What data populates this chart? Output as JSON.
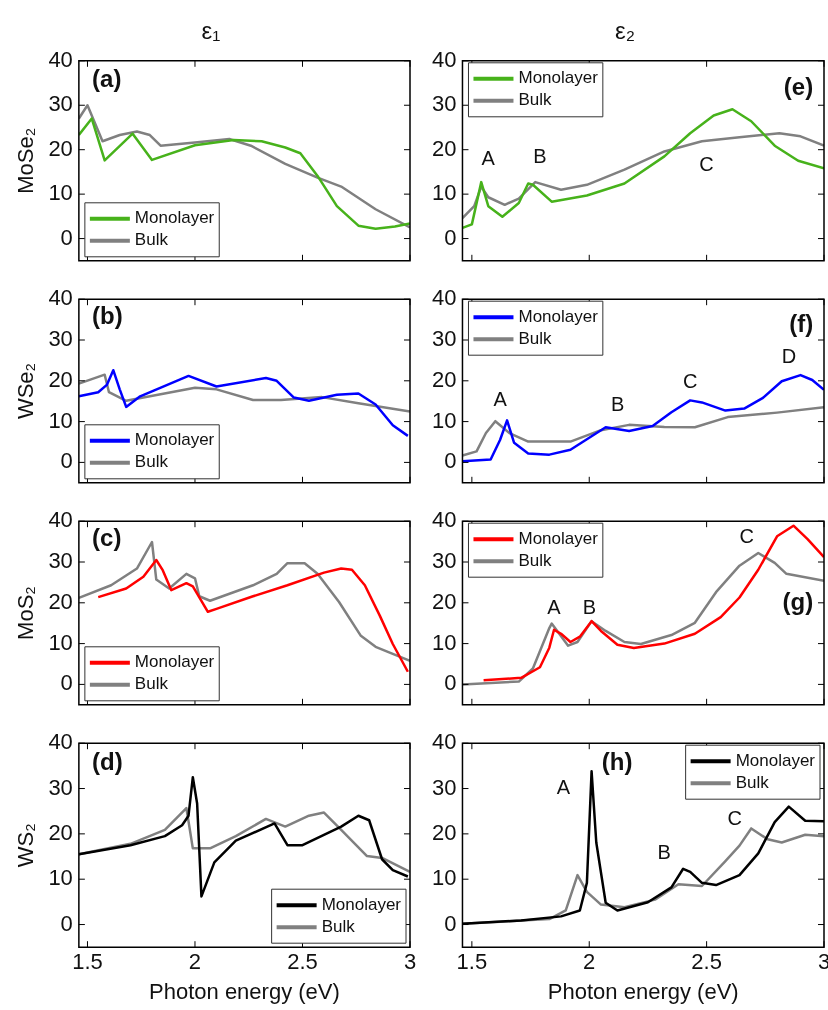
{
  "chart_data": [
    {
      "type": "line",
      "title": "ε₁",
      "ylabel": "MoSe₂",
      "xlim": [
        1.46,
        3
      ],
      "xticks": [
        1.5,
        2,
        2.5,
        3
      ],
      "ylim": [
        -5,
        40
      ],
      "yticks": [
        0,
        10,
        20,
        30,
        40
      ],
      "tick_labels": "y",
      "legend": "bottom left",
      "annotations": [
        "(a)"
      ],
      "series": [
        {
          "name": "Monolayer",
          "color": "#47b21b",
          "x": [
            1.46,
            1.52,
            1.58,
            1.71,
            1.8,
            2.0,
            2.18,
            2.31,
            2.42,
            2.49,
            2.57,
            2.66,
            2.76,
            2.84,
            2.93,
            3.0
          ],
          "values": [
            23.3,
            27,
            17.6,
            23.6,
            17.7,
            21,
            22.2,
            21.9,
            20.5,
            19.2,
            14.1,
            7.3,
            2.9,
            2.2,
            2.7,
            3.4
          ]
        },
        {
          "name": "Bulk",
          "color": "#808080",
          "x": [
            1.46,
            1.5,
            1.57,
            1.65,
            1.73,
            1.79,
            1.84,
            2.0,
            2.16,
            2.26,
            2.42,
            2.57,
            2.68,
            2.84,
            3.0
          ],
          "values": [
            27,
            30,
            21.9,
            23.3,
            24.1,
            23.3,
            20.9,
            21.6,
            22.4,
            20.9,
            16.8,
            13.7,
            11.7,
            6.6,
            2.5
          ]
        }
      ]
    },
    {
      "type": "line",
      "ylabel": "WSe₂",
      "xlim": [
        1.46,
        3
      ],
      "xticks": [
        1.5,
        2,
        2.5,
        3
      ],
      "ylim": [
        -5,
        40
      ],
      "yticks": [
        0,
        10,
        20,
        30,
        40
      ],
      "tick_labels": "y",
      "legend": "bottom left",
      "annotations": [
        "(b)"
      ],
      "series": [
        {
          "name": "Monolayer",
          "color": "#0000ff",
          "x": [
            1.46,
            1.55,
            1.59,
            1.62,
            1.65,
            1.68,
            1.745,
            1.97,
            2.1,
            2.33,
            2.38,
            2.46,
            2.53,
            2.66,
            2.76,
            2.84,
            2.92,
            2.99
          ],
          "values": [
            16.2,
            17.2,
            19,
            22.6,
            17.9,
            13.6,
            16.2,
            21.2,
            18.6,
            20.7,
            20,
            15.9,
            15.1,
            16.6,
            16.9,
            14.2,
            9.1,
            6.5
          ]
        },
        {
          "name": "Bulk",
          "color": "#808080",
          "x": [
            1.46,
            1.58,
            1.6,
            1.68,
            2.0,
            2.1,
            2.27,
            2.4,
            2.59,
            2.76,
            3.0
          ],
          "values": [
            19.3,
            21.5,
            17.2,
            15.1,
            18.3,
            17.9,
            15.3,
            15.3,
            16,
            14.5,
            12.5
          ]
        }
      ]
    },
    {
      "type": "line",
      "ylabel": "MoS₂",
      "xlim": [
        1.46,
        3
      ],
      "xticks": [
        1.5,
        2,
        2.5,
        3
      ],
      "ylim": [
        -5,
        40
      ],
      "yticks": [
        0,
        10,
        20,
        30,
        40
      ],
      "tick_labels": "y",
      "legend": "bottom left",
      "annotations": [
        "(c)"
      ],
      "series": [
        {
          "name": "Monolayer",
          "color": "#ff0000",
          "x": [
            1.55,
            1.68,
            1.76,
            1.82,
            1.85,
            1.89,
            1.96,
            1.99,
            2.06,
            2.1,
            2.27,
            2.43,
            2.6,
            2.68,
            2.73,
            2.79,
            2.86,
            2.92,
            2.99
          ],
          "values": [
            21.4,
            23.5,
            26.4,
            30.5,
            28,
            23.1,
            24.8,
            24,
            17.8,
            18.5,
            21.6,
            24.3,
            27.4,
            28.4,
            28.1,
            24.3,
            16.8,
            9.9,
            3.1
          ]
        },
        {
          "name": "Bulk",
          "color": "#808080",
          "x": [
            1.46,
            1.61,
            1.73,
            1.8,
            1.82,
            1.88,
            1.96,
            2.0,
            2.02,
            2.07,
            2.27,
            2.38,
            2.43,
            2.51,
            2.57,
            2.67,
            2.77,
            2.84,
            2.92,
            3.0
          ],
          "values": [
            21.2,
            24.3,
            28.4,
            34.9,
            25.7,
            23.5,
            27.1,
            26,
            21.6,
            20.5,
            24.3,
            27.1,
            29.7,
            29.7,
            27.1,
            20.2,
            12,
            9.2,
            7.5,
            5.8
          ]
        }
      ]
    },
    {
      "type": "line",
      "ylabel": "WS₂",
      "xlabel": "Photon energy (eV)",
      "xlim": [
        1.46,
        3
      ],
      "xticks": [
        1.5,
        2,
        2.5,
        3
      ],
      "ylim": [
        -5,
        40
      ],
      "yticks": [
        0,
        10,
        20,
        30,
        40
      ],
      "legend": "bottom right",
      "annotations": [
        "(d)"
      ],
      "series": [
        {
          "name": "Monolayer",
          "color": "#000000",
          "x": [
            1.46,
            1.7,
            1.86,
            1.94,
            1.97,
            1.99,
            2.01,
            2.03,
            2.09,
            2.19,
            2.37,
            2.43,
            2.5,
            2.68,
            2.76,
            2.81,
            2.87,
            2.92,
            2.99
          ],
          "values": [
            15.5,
            17.5,
            19.5,
            21.9,
            24,
            32.5,
            26.7,
            6.2,
            13.7,
            18.5,
            22.3,
            17.5,
            17.5,
            21.6,
            24,
            23,
            14.4,
            12,
            10.6
          ]
        },
        {
          "name": "Bulk",
          "color": "#808080",
          "x": [
            1.46,
            1.7,
            1.86,
            1.96,
            1.99,
            2.07,
            2.19,
            2.33,
            2.42,
            2.53,
            2.6,
            2.68,
            2.8,
            2.87,
            3.0
          ],
          "values": [
            15.5,
            17.8,
            20.9,
            25.7,
            16.8,
            16.8,
            19.5,
            23.3,
            21.6,
            24,
            24.7,
            20.9,
            15.1,
            14.7,
            11.6
          ]
        }
      ]
    },
    {
      "type": "line",
      "title": "ε₂",
      "xlim": [
        1.46,
        3
      ],
      "xticks": [
        1.5,
        2,
        2.5,
        3
      ],
      "ylim": [
        -5,
        40
      ],
      "yticks": [
        0,
        10,
        20,
        30,
        40
      ],
      "tick_labels": "y",
      "legend": "top left",
      "annotations": [
        "(e)",
        "A",
        "B",
        "C"
      ],
      "series": [
        {
          "name": "Monolayer",
          "color": "#47b21b",
          "x": [
            1.46,
            1.5,
            1.54,
            1.57,
            1.63,
            1.7,
            1.74,
            1.76,
            1.84,
            1.99,
            2.15,
            2.32,
            2.43,
            2.53,
            2.61,
            2.69,
            2.79,
            2.89,
            3.0
          ],
          "values": [
            2.4,
            3.2,
            12.7,
            7.3,
            4.9,
            8,
            12.4,
            12.1,
            8.3,
            9.7,
            12.4,
            18.5,
            23.7,
            27.7,
            29.1,
            26.4,
            20.9,
            17.5,
            15.8
          ]
        },
        {
          "name": "Bulk",
          "color": "#808080",
          "x": [
            1.46,
            1.51,
            1.54,
            1.57,
            1.64,
            1.7,
            1.77,
            1.88,
            1.99,
            2.15,
            2.32,
            2.48,
            2.64,
            2.81,
            2.9,
            3.0
          ],
          "values": [
            4.6,
            7.3,
            11.7,
            9.3,
            7.6,
            9,
            12.7,
            11,
            12.1,
            15.5,
            19.6,
            21.9,
            22.8,
            23.7,
            23,
            20.9
          ]
        }
      ]
    },
    {
      "type": "line",
      "xlim": [
        1.46,
        3
      ],
      "xticks": [
        1.5,
        2,
        2.5,
        3
      ],
      "ylim": [
        -5,
        40
      ],
      "yticks": [
        0,
        10,
        20,
        30,
        40
      ],
      "tick_labels": "y",
      "legend": "top left",
      "annotations": [
        "(f)",
        "A",
        "B",
        "C",
        "D"
      ],
      "series": [
        {
          "name": "Monolayer",
          "color": "#0000ff",
          "x": [
            1.46,
            1.58,
            1.62,
            1.65,
            1.68,
            1.74,
            1.83,
            1.92,
            2.07,
            2.17,
            2.27,
            2.35,
            2.43,
            2.48,
            2.58,
            2.66,
            2.74,
            2.82,
            2.9,
            2.95,
            3.0
          ],
          "values": [
            0.3,
            0.7,
            5.5,
            10.3,
            4.8,
            2.2,
            1.9,
            3.1,
            8.6,
            7.7,
            8.9,
            12.3,
            15.2,
            14.7,
            12.7,
            13.2,
            15.8,
            19.9,
            21.4,
            20.2,
            17.8
          ]
        },
        {
          "name": "Bulk",
          "color": "#808080",
          "x": [
            1.46,
            1.52,
            1.56,
            1.6,
            1.66,
            1.74,
            1.92,
            2.05,
            2.17,
            2.32,
            2.45,
            2.59,
            2.8,
            3.0
          ],
          "values": [
            1.7,
            2.7,
            7.2,
            10.1,
            7.2,
            5.1,
            5.1,
            7.9,
            9.2,
            8.7,
            8.6,
            11.1,
            12.2,
            13.5
          ]
        }
      ]
    },
    {
      "type": "line",
      "xlim": [
        1.46,
        3
      ],
      "xticks": [
        1.5,
        2,
        2.5,
        3
      ],
      "ylim": [
        -5,
        40
      ],
      "yticks": [
        0,
        10,
        20,
        30,
        40
      ],
      "tick_labels": "y",
      "legend": "top left",
      "annotations": [
        "(g)",
        "A",
        "B",
        "C"
      ],
      "series": [
        {
          "name": "Monolayer",
          "color": "#ff0000",
          "x": [
            1.55,
            1.71,
            1.79,
            1.83,
            1.85,
            1.88,
            1.92,
            1.96,
            2.01,
            2.05,
            2.12,
            2.19,
            2.32,
            2.45,
            2.56,
            2.64,
            2.72,
            2.8,
            2.87,
            2.93,
            3.0
          ],
          "values": [
            1,
            1.6,
            4.2,
            9,
            13.4,
            12.4,
            10.4,
            11.7,
            15.5,
            13.1,
            9.7,
            8.9,
            10,
            12.4,
            16.5,
            21.3,
            28.1,
            36.3,
            38.9,
            35.6,
            31.2
          ]
        },
        {
          "name": "Bulk",
          "color": "#808080",
          "x": [
            1.46,
            1.7,
            1.76,
            1.83,
            1.84,
            1.91,
            1.95,
            2.01,
            2.07,
            2.15,
            2.22,
            2.35,
            2.45,
            2.54,
            2.64,
            2.72,
            2.79,
            2.84,
            3.0
          ],
          "values": [
            0,
            0.7,
            3.9,
            13.8,
            14.9,
            9.5,
            10.4,
            15.5,
            13.1,
            10.4,
            9.9,
            12.1,
            15.1,
            22.6,
            29.1,
            32.2,
            29.8,
            27.1,
            25.4
          ]
        }
      ]
    },
    {
      "type": "line",
      "xlabel": "Photon energy (eV)",
      "xlim": [
        1.46,
        3
      ],
      "xticks": [
        1.5,
        2,
        2.5,
        3
      ],
      "ylim": [
        -5,
        40
      ],
      "yticks": [
        0,
        10,
        20,
        30,
        40
      ],
      "legend": "top right",
      "annotations": [
        "(h)",
        "A",
        "B",
        "C"
      ],
      "series": [
        {
          "name": "Monolayer",
          "color": "#000000",
          "x": [
            1.46,
            1.71,
            1.88,
            1.96,
            1.99,
            2.01,
            2.03,
            2.07,
            2.12,
            2.25,
            2.35,
            2.4,
            2.43,
            2.48,
            2.54,
            2.64,
            2.72,
            2.79,
            2.85,
            2.92,
            3.0
          ],
          "values": [
            0.2,
            0.9,
            1.8,
            3.1,
            9.2,
            33.8,
            18.1,
            4.8,
            3.1,
            4.9,
            8.2,
            12.3,
            11.6,
            9.2,
            8.7,
            10.9,
            15.7,
            22.6,
            26,
            22.9,
            22.8
          ]
        },
        {
          "name": "Bulk",
          "color": "#808080",
          "x": [
            1.46,
            1.83,
            1.9,
            1.95,
            1.99,
            2.05,
            2.15,
            2.28,
            2.38,
            2.48,
            2.58,
            2.64,
            2.69,
            2.76,
            2.82,
            2.92,
            3.0
          ],
          "values": [
            0.2,
            1.2,
            3.1,
            10.9,
            7.2,
            4.4,
            3.8,
            5.5,
            8.9,
            8.5,
            14,
            17.4,
            21.2,
            18.8,
            18.1,
            19.8,
            19.5
          ]
        }
      ]
    }
  ]
}
